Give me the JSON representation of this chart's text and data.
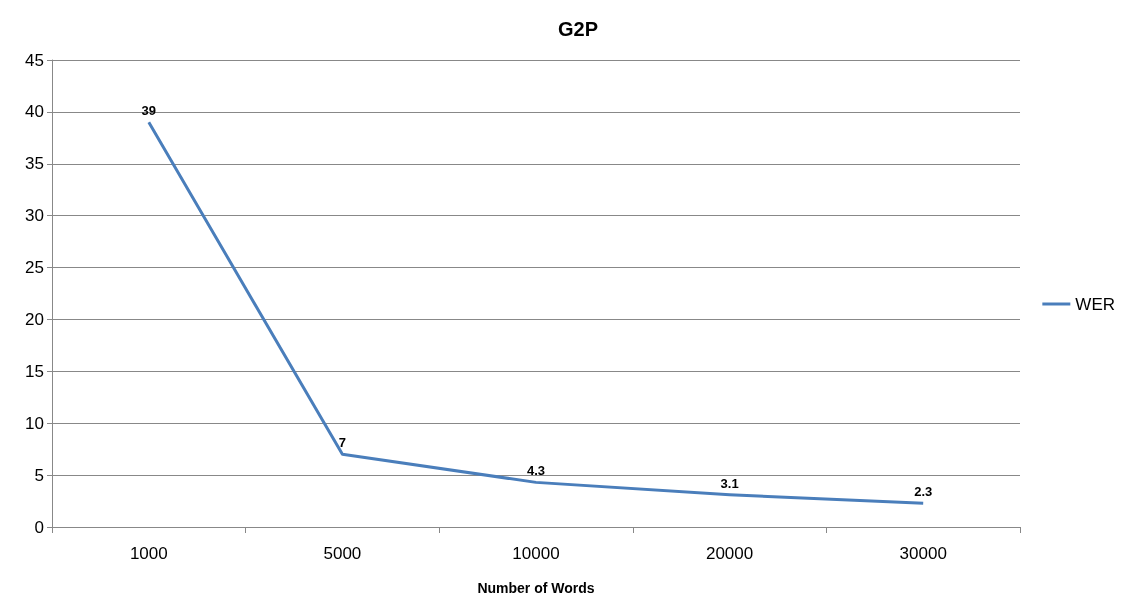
{
  "chart_data": {
    "type": "line",
    "title": "G2P",
    "xlabel": "Number of Words",
    "categories": [
      "1000",
      "5000",
      "10000",
      "20000",
      "30000"
    ],
    "series": [
      {
        "name": "WER",
        "color": "#4a7ebb",
        "values": [
          39,
          7,
          4.3,
          3.1,
          2.3
        ]
      }
    ],
    "ylim": [
      0,
      45
    ],
    "yticks": [
      0,
      5,
      10,
      15,
      20,
      25,
      30,
      35,
      40,
      45
    ],
    "grid": "y",
    "legend": "right",
    "marker": "none",
    "line_style": "solid",
    "data_labels": true
  }
}
